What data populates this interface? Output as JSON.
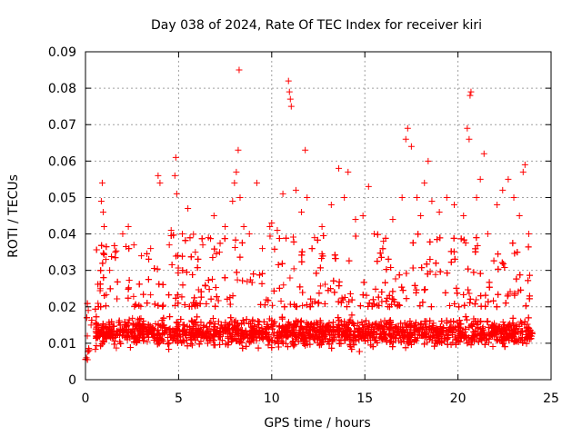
{
  "chart_data": {
    "type": "scatter",
    "title": "Day 038 of 2024, Rate Of TEC Index for receiver kiri",
    "xlabel": "GPS time / hours",
    "ylabel": "ROTI / TECUs",
    "xlim": [
      0,
      25
    ],
    "ylim": [
      0,
      0.09
    ],
    "xticks": [
      0,
      5,
      10,
      15,
      20,
      25
    ],
    "yticks": [
      0,
      0.01,
      0.02,
      0.03,
      0.04,
      0.05,
      0.06,
      0.07,
      0.08,
      0.09
    ],
    "xtick_labels": [
      "0",
      "5",
      "10",
      "15",
      "20",
      "25"
    ],
    "ytick_labels": [
      "0",
      "0.01",
      "0.02",
      "0.03",
      "0.04",
      "0.05",
      "0.06",
      "0.07",
      "0.08",
      "0.09"
    ],
    "grid": true,
    "marker": "plus",
    "color": "#ff0000",
    "data_range_x": [
      0,
      24
    ],
    "series": [
      {
        "points": [
          [
            0.05,
            0.006
          ],
          [
            0.1,
            0.012
          ],
          [
            0.15,
            0.019
          ],
          [
            0.2,
            0.008
          ],
          [
            0.3,
            0.015
          ],
          [
            0.6,
            0.012
          ],
          [
            0.8,
            0.025
          ],
          [
            0.85,
            0.049
          ],
          [
            0.9,
            0.054
          ],
          [
            0.95,
            0.046
          ],
          [
            1.0,
            0.042
          ],
          [
            1.1,
            0.033
          ],
          [
            1.3,
            0.03
          ],
          [
            1.6,
            0.035
          ],
          [
            2.0,
            0.04
          ],
          [
            2.3,
            0.042
          ],
          [
            2.6,
            0.037
          ],
          [
            3.0,
            0.034
          ],
          [
            3.5,
            0.036
          ],
          [
            3.9,
            0.056
          ],
          [
            4.0,
            0.054
          ],
          [
            4.5,
            0.037
          ],
          [
            4.6,
            0.041
          ],
          [
            4.8,
            0.056
          ],
          [
            4.85,
            0.061
          ],
          [
            4.9,
            0.051
          ],
          [
            5.2,
            0.04
          ],
          [
            5.5,
            0.047
          ],
          [
            5.9,
            0.035
          ],
          [
            6.3,
            0.037
          ],
          [
            6.6,
            0.039
          ],
          [
            6.9,
            0.045
          ],
          [
            7.2,
            0.035
          ],
          [
            7.5,
            0.042
          ],
          [
            7.9,
            0.049
          ],
          [
            8.0,
            0.054
          ],
          [
            8.1,
            0.057
          ],
          [
            8.2,
            0.063
          ],
          [
            8.25,
            0.085
          ],
          [
            8.3,
            0.05
          ],
          [
            8.5,
            0.042
          ],
          [
            8.8,
            0.04
          ],
          [
            9.2,
            0.054
          ],
          [
            9.5,
            0.036
          ],
          [
            9.9,
            0.042
          ],
          [
            10.0,
            0.043
          ],
          [
            10.3,
            0.041
          ],
          [
            10.6,
            0.051
          ],
          [
            10.9,
            0.082
          ],
          [
            10.95,
            0.079
          ],
          [
            11.0,
            0.077
          ],
          [
            11.05,
            0.075
          ],
          [
            11.3,
            0.052
          ],
          [
            11.6,
            0.046
          ],
          [
            11.8,
            0.063
          ],
          [
            11.9,
            0.05
          ],
          [
            12.3,
            0.039
          ],
          [
            12.7,
            0.042
          ],
          [
            13.2,
            0.048
          ],
          [
            13.6,
            0.058
          ],
          [
            13.9,
            0.05
          ],
          [
            14.1,
            0.057
          ],
          [
            14.5,
            0.044
          ],
          [
            14.9,
            0.045
          ],
          [
            15.2,
            0.053
          ],
          [
            15.5,
            0.04
          ],
          [
            16.0,
            0.038
          ],
          [
            16.5,
            0.044
          ],
          [
            17.0,
            0.05
          ],
          [
            17.2,
            0.066
          ],
          [
            17.3,
            0.069
          ],
          [
            17.5,
            0.064
          ],
          [
            17.8,
            0.05
          ],
          [
            18.0,
            0.045
          ],
          [
            18.2,
            0.054
          ],
          [
            18.4,
            0.06
          ],
          [
            18.6,
            0.049
          ],
          [
            19.0,
            0.046
          ],
          [
            19.4,
            0.05
          ],
          [
            19.8,
            0.048
          ],
          [
            20.3,
            0.045
          ],
          [
            20.5,
            0.069
          ],
          [
            20.6,
            0.066
          ],
          [
            20.65,
            0.078
          ],
          [
            20.7,
            0.079
          ],
          [
            21.0,
            0.05
          ],
          [
            21.2,
            0.055
          ],
          [
            21.4,
            0.062
          ],
          [
            21.6,
            0.04
          ],
          [
            22.1,
            0.048
          ],
          [
            22.4,
            0.052
          ],
          [
            22.7,
            0.055
          ],
          [
            23.0,
            0.05
          ],
          [
            23.3,
            0.045
          ],
          [
            23.5,
            0.057
          ],
          [
            23.6,
            0.059
          ],
          [
            23.8,
            0.04
          ]
        ]
      }
    ]
  }
}
